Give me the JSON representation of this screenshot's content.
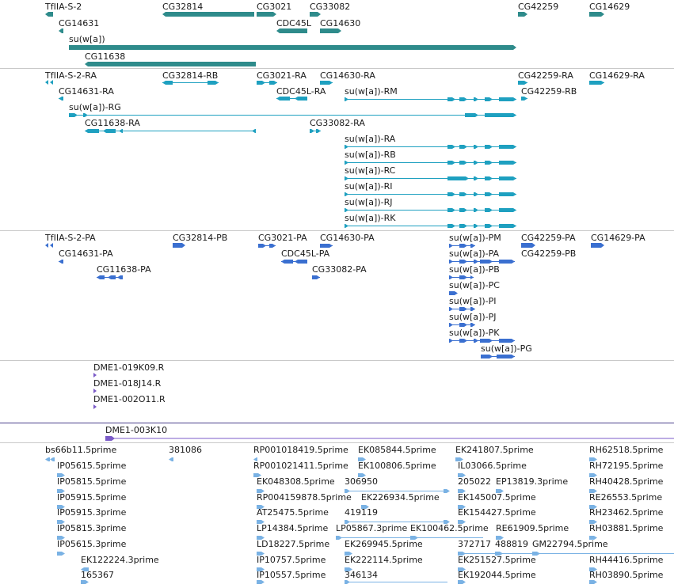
{
  "colors": {
    "gene": "#2e8b8b",
    "transcript": "#1ea0c0",
    "protein": "#3a6fd0",
    "clone": "#7b5bc8",
    "est": "#7ab2e4",
    "divider": "#c9c9c9",
    "divider_dark": "#4a3f8c"
  },
  "tracks": {
    "genes": {
      "labels": [
        "TfIIA-S-2",
        "CG32814",
        "CG3021",
        "CG33082",
        "CG42259",
        "CG14629",
        "CG14631",
        "CDC45L",
        "CG14630",
        "su(w[a])",
        "CG11638"
      ]
    },
    "transcripts": {
      "labels": [
        "TfIIA-S-2-RA",
        "CG32814-RB",
        "CG3021-RA",
        "CG14630-RA",
        "CG42259-RA",
        "CG14629-RA",
        "CG14631-RA",
        "CDC45L-RA",
        "su(w[a])-RM",
        "CG42259-RB",
        "su(w[a])-RG",
        "CG11638-RA",
        "CG33082-RA",
        "su(w[a])-RA",
        "su(w[a])-RB",
        "su(w[a])-RC",
        "su(w[a])-RI",
        "su(w[a])-RJ",
        "su(w[a])-RK"
      ]
    },
    "proteins": {
      "labels": [
        "TfIIA-S-2-PA",
        "CG32814-PB",
        "CG3021-PA",
        "CG14630-PA",
        "su(w[a])-PM",
        "CG42259-PA",
        "CG14629-PA",
        "CG14631-PA",
        "CDC45L-PA",
        "su(w[a])-PA",
        "CG42259-PB",
        "CG11638-PA",
        "CG33082-PA",
        "su(w[a])-PB",
        "su(w[a])-PC",
        "su(w[a])-PI",
        "su(w[a])-PJ",
        "su(w[a])-PK",
        "su(w[a])-PG"
      ]
    },
    "clones": {
      "labels": [
        "DME1-019K09.R",
        "DME1-018J14.R",
        "DME1-002O11.R"
      ]
    },
    "clone_large": {
      "labels": [
        "DME1-003K10"
      ]
    },
    "ests": {
      "labels": [
        "bs66b11.5prime",
        "381086",
        "RP001018419.5prime",
        "EK085844.5prime",
        "EK241807.5prime",
        "RH62518.5prime",
        "IP05615.5prime",
        "RP001021411.5prime",
        "EK100806.5prime",
        "IL03066.5prime",
        "RH72195.5prime",
        "IP05815.5prime",
        "EK048308.5prime",
        "306950",
        "205022",
        "EP13819.3prime",
        "RH40428.5prime",
        "IP05915.5prime",
        "RP004159878.5prime",
        "EK226934.5prime",
        "EK145007.5prime",
        "RE26553.5prime",
        "IP05915.3prime",
        "AT25475.5prime",
        "419119",
        "EK154427.5prime",
        "RH23462.5prime",
        "IP05815.3prime",
        "LP14384.5prime",
        "LP05867.3prime",
        "EK100462.5prime",
        "RE61909.5prime",
        "RH03881.5prime",
        "IP05615.3prime",
        "LD18227.5prime",
        "EK269945.5prime",
        "372717",
        "488819",
        "GM22794.5prime",
        "EK122224.3prime",
        "IP10757.5prime",
        "EK222114.5prime",
        "EK251527.5prime",
        "RH44416.5prime",
        "165367",
        "IP10557.5prime",
        "346134",
        "EK192044.5prime",
        "RH03890.5prime"
      ]
    }
  }
}
